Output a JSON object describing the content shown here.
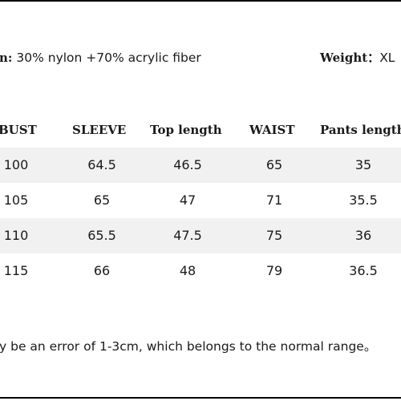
{
  "spec": {
    "composition_key": "n:",
    "composition_value": " 30% nylon +70% acrylic fiber",
    "weight_key": "Weight：",
    "weight_value": "XL"
  },
  "table": {
    "headers": [
      "BUST",
      "SLEEVE",
      "Top length",
      "WAIST",
      "Pants length"
    ],
    "rows": [
      [
        "100",
        "64.5",
        "46.5",
        "65",
        "35"
      ],
      [
        "105",
        "65",
        "47",
        "71",
        "35.5"
      ],
      [
        "110",
        "65.5",
        "47.5",
        "75",
        "36"
      ],
      [
        "115",
        "66",
        "48",
        "79",
        "36.5"
      ]
    ]
  },
  "note": "y be an error of 1-3cm, which belongs to the normal range。"
}
